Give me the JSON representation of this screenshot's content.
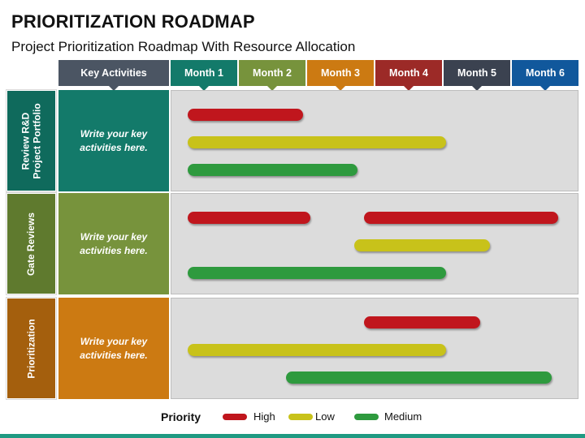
{
  "title": "PRIORITIZATION ROADMAP",
  "subtitle": "Project Prioritization Roadmap With Resource Allocation",
  "header": {
    "key_activities": {
      "label": "Key Activities",
      "color": "#4b5563"
    },
    "months": [
      {
        "label": "Month 1",
        "color": "#137a6a"
      },
      {
        "label": "Month 2",
        "color": "#77933c"
      },
      {
        "label": "Month 3",
        "color": "#cc7a12"
      },
      {
        "label": "Month 4",
        "color": "#9c2a27"
      },
      {
        "label": "Month 5",
        "color": "#3b4250"
      },
      {
        "label": "Month 6",
        "color": "#11589c"
      }
    ]
  },
  "rows": [
    {
      "label": "Review R&D\nProject Portfolio",
      "activity": "Write your key\nactivities here.",
      "side_color": "#0f6a5c",
      "activity_color": "#137a6a"
    },
    {
      "label": "Gate Reviews",
      "activity": "Write your key\nactivities here.",
      "side_color": "#5f7a2e",
      "activity_color": "#77933c"
    },
    {
      "label": "Prioritization",
      "activity": "Write your key\nactivities here.",
      "side_color": "#a45f0d",
      "activity_color": "#cc7a12"
    }
  ],
  "priorities": {
    "High": "#c0161d",
    "Low": "#c8c21a",
    "Medium": "#2e9a3e"
  },
  "bars": [
    {
      "row": 0,
      "lane": 0,
      "start": 0.25,
      "end": 1.95,
      "priority": "High"
    },
    {
      "row": 0,
      "lane": 1,
      "start": 0.25,
      "end": 4.05,
      "priority": "Low"
    },
    {
      "row": 0,
      "lane": 2,
      "start": 0.25,
      "end": 2.75,
      "priority": "Medium"
    },
    {
      "row": 1,
      "lane": 0,
      "start": 0.25,
      "end": 2.05,
      "priority": "High"
    },
    {
      "row": 1,
      "lane": 0,
      "start": 2.85,
      "end": 5.7,
      "priority": "High"
    },
    {
      "row": 1,
      "lane": 1,
      "start": 2.7,
      "end": 4.7,
      "priority": "Low"
    },
    {
      "row": 1,
      "lane": 2,
      "start": 0.25,
      "end": 4.05,
      "priority": "Medium"
    },
    {
      "row": 2,
      "lane": 0,
      "start": 2.85,
      "end": 4.55,
      "priority": "High"
    },
    {
      "row": 2,
      "lane": 1,
      "start": 0.25,
      "end": 4.05,
      "priority": "Low"
    },
    {
      "row": 2,
      "lane": 2,
      "start": 1.7,
      "end": 5.6,
      "priority": "Medium"
    }
  ],
  "legend": {
    "title": "Priority",
    "items": [
      {
        "label": "High",
        "color": "#c0161d"
      },
      {
        "label": "Low",
        "color": "#c8c21a"
      },
      {
        "label": "Medium",
        "color": "#2e9a3e"
      }
    ]
  }
}
